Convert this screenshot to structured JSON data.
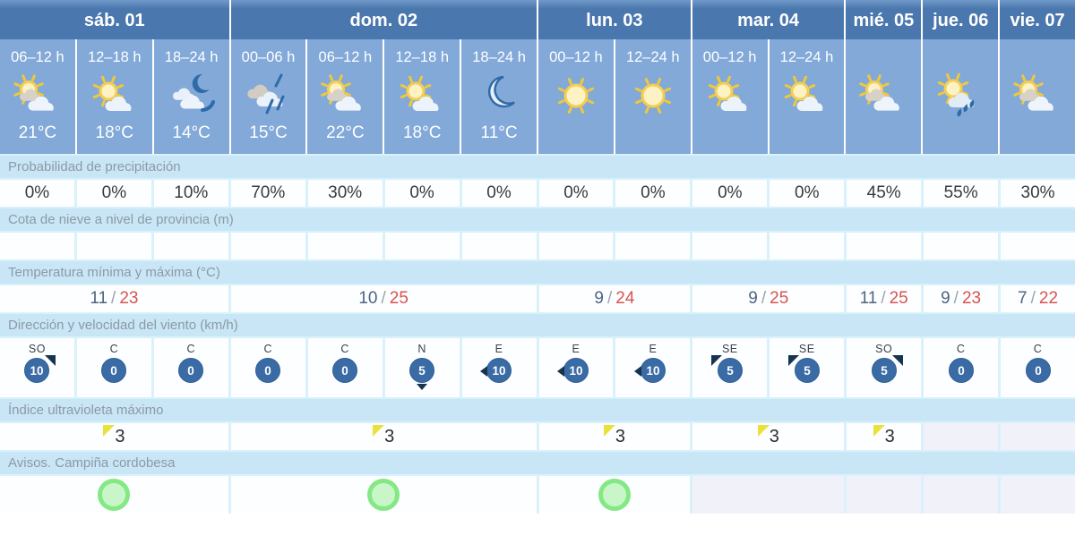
{
  "table": {
    "days": [
      {
        "label": "sáb. 01",
        "span": 3
      },
      {
        "label": "dom. 02",
        "span": 4
      },
      {
        "label": "lun. 03",
        "span": 2
      },
      {
        "label": "mar. 04",
        "span": 2
      },
      {
        "label": "mié. 05",
        "span": 1
      },
      {
        "label": "jue. 06",
        "span": 1
      },
      {
        "label": "vie. 07",
        "span": 1
      }
    ],
    "columns": [
      {
        "period": "06–12 h",
        "icon": "sun-behind-clouds",
        "temp": "21°C"
      },
      {
        "period": "12–18 h",
        "icon": "sun-cloud",
        "temp": "18°C"
      },
      {
        "period": "18–24 h",
        "icon": "moon-clouds",
        "temp": "14°C"
      },
      {
        "period": "00–06 h",
        "icon": "rain-clouds",
        "temp": "15°C"
      },
      {
        "period": "06–12 h",
        "icon": "sun-behind-clouds",
        "temp": "22°C"
      },
      {
        "period": "12–18 h",
        "icon": "sun-cloud",
        "temp": "18°C"
      },
      {
        "period": "18–24 h",
        "icon": "moon",
        "temp": "11°C"
      },
      {
        "period": "00–12 h",
        "icon": "sun",
        "temp": ""
      },
      {
        "period": "12–24 h",
        "icon": "sun",
        "temp": ""
      },
      {
        "period": "00–12 h",
        "icon": "sun-cloud",
        "temp": ""
      },
      {
        "period": "12–24 h",
        "icon": "sun-cloud",
        "temp": ""
      },
      {
        "period": "",
        "icon": "sun-behind-clouds",
        "temp": ""
      },
      {
        "period": "",
        "icon": "sun-cloud-rain",
        "temp": ""
      },
      {
        "period": "",
        "icon": "sun-behind-clouds",
        "temp": ""
      }
    ],
    "rows": {
      "precipitation": {
        "label": "Probabilidad de precipitación",
        "values": [
          "0%",
          "0%",
          "10%",
          "70%",
          "30%",
          "0%",
          "0%",
          "0%",
          "0%",
          "0%",
          "0%",
          "45%",
          "55%",
          "30%"
        ]
      },
      "snow": {
        "label": "Cota de nieve a nivel de provincia (m)",
        "values": [
          "",
          "",
          "",
          "",
          "",
          "",
          "",
          "",
          "",
          "",
          "",
          "",
          "",
          ""
        ]
      },
      "temperature": {
        "label": "Temperatura mínima y máxima (°C)",
        "separator": "/",
        "values": [
          {
            "min": "11",
            "max": "23"
          },
          {
            "min": "10",
            "max": "25"
          },
          {
            "min": "9",
            "max": "24"
          },
          {
            "min": "9",
            "max": "25"
          },
          {
            "min": "11",
            "max": "25"
          },
          {
            "min": "9",
            "max": "23"
          },
          {
            "min": "7",
            "max": "22"
          }
        ]
      },
      "wind": {
        "label": "Dirección y velocidad del viento (km/h)",
        "values": [
          {
            "dir": "SO",
            "speed": "10",
            "arrow": "ne"
          },
          {
            "dir": "C",
            "speed": "0",
            "arrow": ""
          },
          {
            "dir": "C",
            "speed": "0",
            "arrow": ""
          },
          {
            "dir": "C",
            "speed": "0",
            "arrow": ""
          },
          {
            "dir": "C",
            "speed": "0",
            "arrow": ""
          },
          {
            "dir": "N",
            "speed": "5",
            "arrow": "s"
          },
          {
            "dir": "E",
            "speed": "10",
            "arrow": "w"
          },
          {
            "dir": "E",
            "speed": "10",
            "arrow": "w"
          },
          {
            "dir": "E",
            "speed": "10",
            "arrow": "w"
          },
          {
            "dir": "SE",
            "speed": "5",
            "arrow": "nw"
          },
          {
            "dir": "SE",
            "speed": "5",
            "arrow": "nw"
          },
          {
            "dir": "SO",
            "speed": "5",
            "arrow": "ne"
          },
          {
            "dir": "C",
            "speed": "0",
            "arrow": ""
          },
          {
            "dir": "C",
            "speed": "0",
            "arrow": ""
          }
        ]
      },
      "uv": {
        "label": "Índice ultravioleta máximo",
        "values": [
          "3",
          "3",
          "3",
          "3",
          "3",
          "",
          ""
        ]
      },
      "warnings": {
        "label": "Avisos. Campiña cordobesa",
        "values": [
          "green",
          "green",
          "green",
          "",
          "",
          "",
          ""
        ]
      }
    },
    "colors": {
      "header_blue": "#4a77ad",
      "band_blue": "#82a9d8",
      "label_band_blue": "#c9e6f7",
      "page_cyan": "#d9f1fb",
      "cell_white": "#fdfeff",
      "empty_cell_lavender": "#f1f1fa",
      "temp_min": "#4d6582",
      "temp_max": "#d9534f",
      "wind_badge_blue": "#3a6ba5",
      "uv_flag_yellow": "#e9e23b",
      "warning_green": "#84e884"
    }
  }
}
